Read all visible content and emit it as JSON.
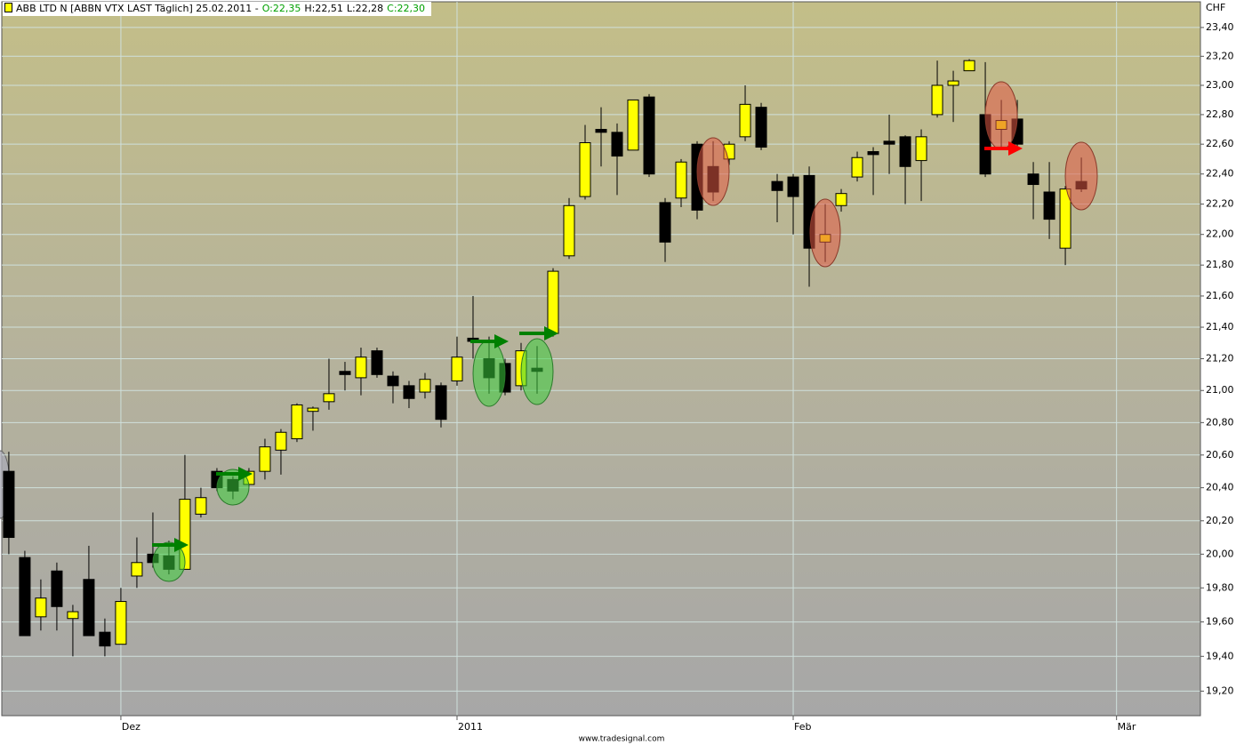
{
  "chart_data": {
    "type": "candlestick",
    "title": "ABB LTD N [ABBN VTX LAST Täglich] 25.02.2011 -",
    "quote_parts": [
      {
        "text": "O:22,35",
        "color": "#00a000"
      },
      {
        "text": "H:22,51",
        "color": "#000000"
      },
      {
        "text": "L:22,28",
        "color": "#000000"
      },
      {
        "text": "C:22,30",
        "color": "#00a000"
      }
    ],
    "y_axis_label": "CHF",
    "footer": "www.tradesignal.com",
    "log_scale": true,
    "grid": true,
    "up_color": "#ffff00",
    "down_color": "#000000",
    "open": [
      20.5,
      19.98,
      19.63,
      19.9,
      19.62,
      19.85,
      19.54,
      19.47,
      19.87,
      20.0,
      19.99,
      19.91,
      20.24,
      20.5,
      20.45,
      20.42,
      20.5,
      20.63,
      20.7,
      20.87,
      20.93,
      21.12,
      21.08,
      21.25,
      21.09,
      21.03,
      20.99,
      21.03,
      21.06,
      21.33,
      21.2,
      21.17,
      21.03,
      21.14,
      21.36,
      21.86,
      22.25,
      22.7,
      22.68,
      22.56,
      22.92,
      22.21,
      22.24,
      22.6,
      22.45,
      22.5,
      22.65,
      22.85,
      22.35,
      22.38,
      22.39,
      21.95,
      22.19,
      22.38,
      22.55,
      22.62,
      22.65,
      22.49,
      22.8,
      23.0,
      23.1,
      22.8,
      22.7,
      22.77,
      22.4,
      22.28,
      21.91,
      22.35
    ],
    "high": [
      20.62,
      20.02,
      19.85,
      19.95,
      19.7,
      20.05,
      19.62,
      19.8,
      20.1,
      20.25,
      20.08,
      20.6,
      20.4,
      20.52,
      20.47,
      20.52,
      20.7,
      20.76,
      20.92,
      20.9,
      21.2,
      21.18,
      21.27,
      21.27,
      21.12,
      21.06,
      21.11,
      21.05,
      21.34,
      21.6,
      21.34,
      21.2,
      21.3,
      21.28,
      21.78,
      22.24,
      22.73,
      22.85,
      22.74,
      22.9,
      22.94,
      22.24,
      22.5,
      22.62,
      22.62,
      22.62,
      23.0,
      22.88,
      22.4,
      22.4,
      22.45,
      22.2,
      22.3,
      22.55,
      22.58,
      22.8,
      22.66,
      22.7,
      23.17,
      23.1,
      23.18,
      23.16,
      22.9,
      22.9,
      22.48,
      22.48,
      22.32,
      22.51
    ],
    "low": [
      20.0,
      19.52,
      19.55,
      19.55,
      19.4,
      19.52,
      19.4,
      19.47,
      19.8,
      19.92,
      19.88,
      19.91,
      20.22,
      20.38,
      20.33,
      20.4,
      20.45,
      20.48,
      20.68,
      20.75,
      20.88,
      21.0,
      20.97,
      21.08,
      20.92,
      20.89,
      20.95,
      20.77,
      21.03,
      21.2,
      20.98,
      20.97,
      21.0,
      20.98,
      21.34,
      21.84,
      22.23,
      22.45,
      22.26,
      22.56,
      22.38,
      21.82,
      22.18,
      22.1,
      22.22,
      22.46,
      22.62,
      22.56,
      22.08,
      22.0,
      21.66,
      21.82,
      22.15,
      22.35,
      22.26,
      22.4,
      22.2,
      22.22,
      22.78,
      22.75,
      23.1,
      22.38,
      22.58,
      22.58,
      22.1,
      21.97,
      21.8,
      22.28
    ],
    "close": [
      20.1,
      19.52,
      19.74,
      19.69,
      19.66,
      19.52,
      19.46,
      19.72,
      19.95,
      19.95,
      19.91,
      20.33,
      20.34,
      20.4,
      20.38,
      20.5,
      20.65,
      20.74,
      20.91,
      20.89,
      20.98,
      21.1,
      21.21,
      21.1,
      21.03,
      20.95,
      21.07,
      20.82,
      21.21,
      21.31,
      21.08,
      20.99,
      21.25,
      21.12,
      21.76,
      22.19,
      22.61,
      22.68,
      22.52,
      22.9,
      22.4,
      21.95,
      22.48,
      22.16,
      22.28,
      22.6,
      22.87,
      22.58,
      22.29,
      22.25,
      21.91,
      22.0,
      22.27,
      22.51,
      22.53,
      22.6,
      22.45,
      22.65,
      23.0,
      23.03,
      23.17,
      22.4,
      22.76,
      22.6,
      22.33,
      22.1,
      22.3,
      22.3
    ],
    "ylim": [
      19.06,
      23.58
    ],
    "yticks": [
      {
        "value": 19.2,
        "label": "19,20"
      },
      {
        "value": 19.4,
        "label": "19,40"
      },
      {
        "value": 19.6,
        "label": "19,60"
      },
      {
        "value": 19.8,
        "label": "19,80"
      },
      {
        "value": 20.0,
        "label": "20,00"
      },
      {
        "value": 20.2,
        "label": "20,20"
      },
      {
        "value": 20.4,
        "label": "20,40"
      },
      {
        "value": 20.6,
        "label": "20,60"
      },
      {
        "value": 20.8,
        "label": "20,80"
      },
      {
        "value": 21.0,
        "label": "21,00"
      },
      {
        "value": 21.2,
        "label": "21,20"
      },
      {
        "value": 21.4,
        "label": "21,40"
      },
      {
        "value": 21.6,
        "label": "21,60"
      },
      {
        "value": 21.8,
        "label": "21,80"
      },
      {
        "value": 22.0,
        "label": "22,00"
      },
      {
        "value": 22.2,
        "label": "22,20"
      },
      {
        "value": 22.4,
        "label": "22,40"
      },
      {
        "value": 22.6,
        "label": "22,60"
      },
      {
        "value": 22.8,
        "label": "22,80"
      },
      {
        "value": 23.0,
        "label": "23,00"
      },
      {
        "value": 23.2,
        "label": "23,20"
      },
      {
        "value": 23.4,
        "label": "23,40"
      }
    ],
    "xlim": [
      -0.44,
      74.44
    ],
    "xticks": [
      {
        "value": 7,
        "label": "Dez"
      },
      {
        "value": 28,
        "label": "2011"
      },
      {
        "value": 49,
        "label": "Feb"
      },
      {
        "value": 69.2,
        "label": "Mär"
      }
    ]
  }
}
